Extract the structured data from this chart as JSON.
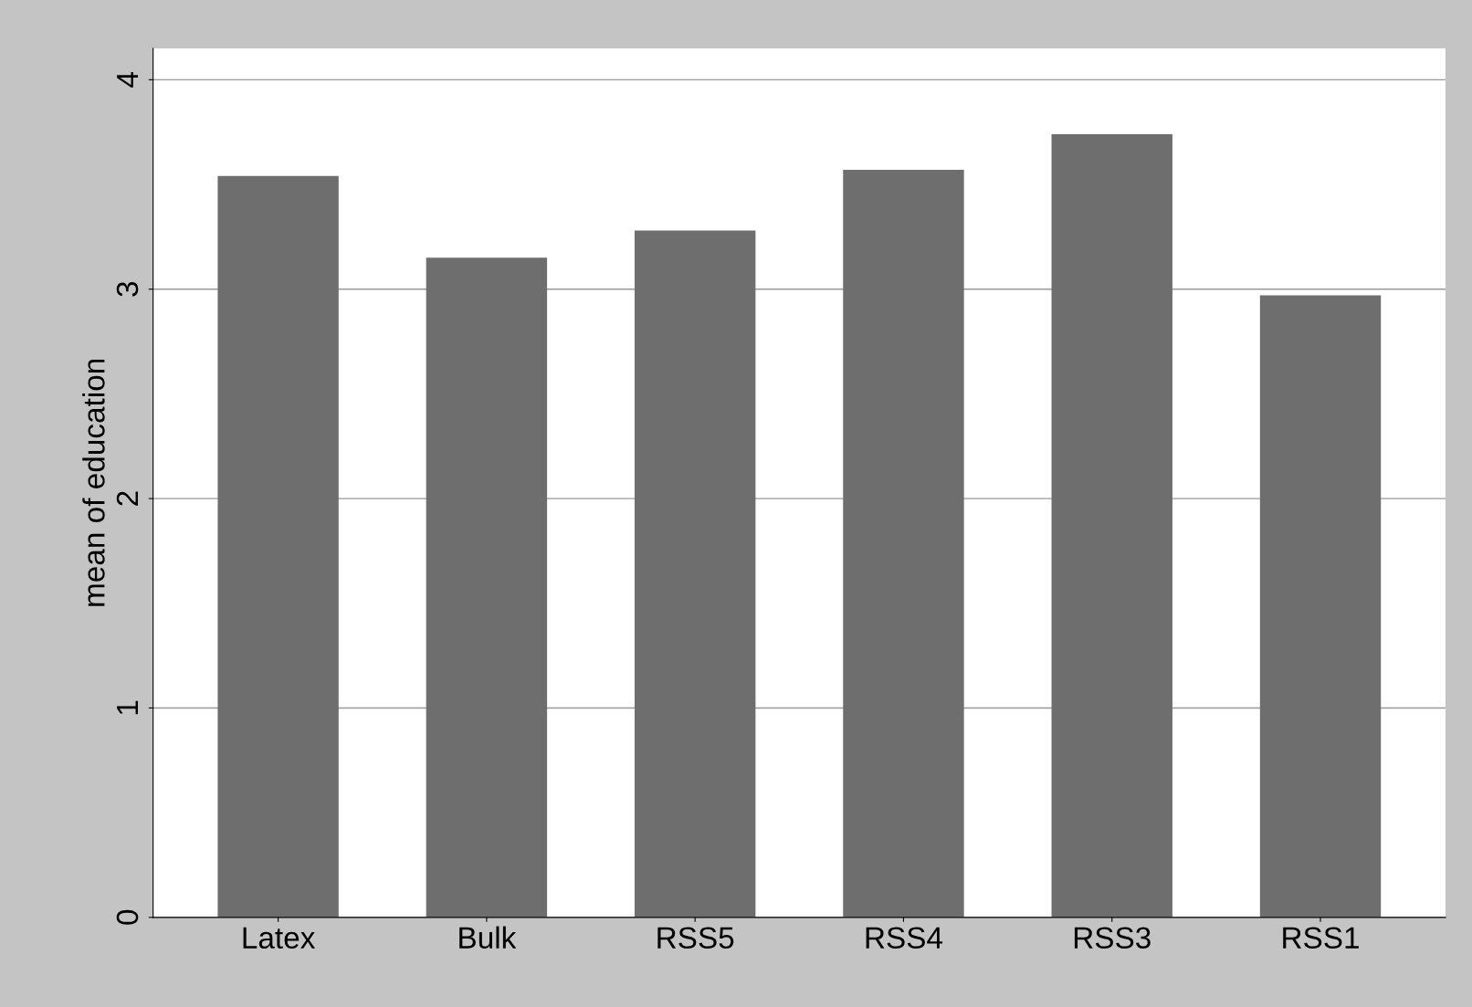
{
  "chart_data": {
    "type": "bar",
    "ylabel": "mean of education",
    "categories": [
      "Latex",
      "Bulk",
      "RSS5",
      "RSS4",
      "RSS3",
      "RSS1"
    ],
    "values": [
      3.54,
      3.15,
      3.28,
      3.57,
      3.74,
      2.97
    ],
    "color": "#6e6e6e",
    "ylim": [
      0,
      4.15
    ],
    "yticks": [
      0,
      1,
      2,
      3,
      4
    ],
    "grid": "y"
  }
}
